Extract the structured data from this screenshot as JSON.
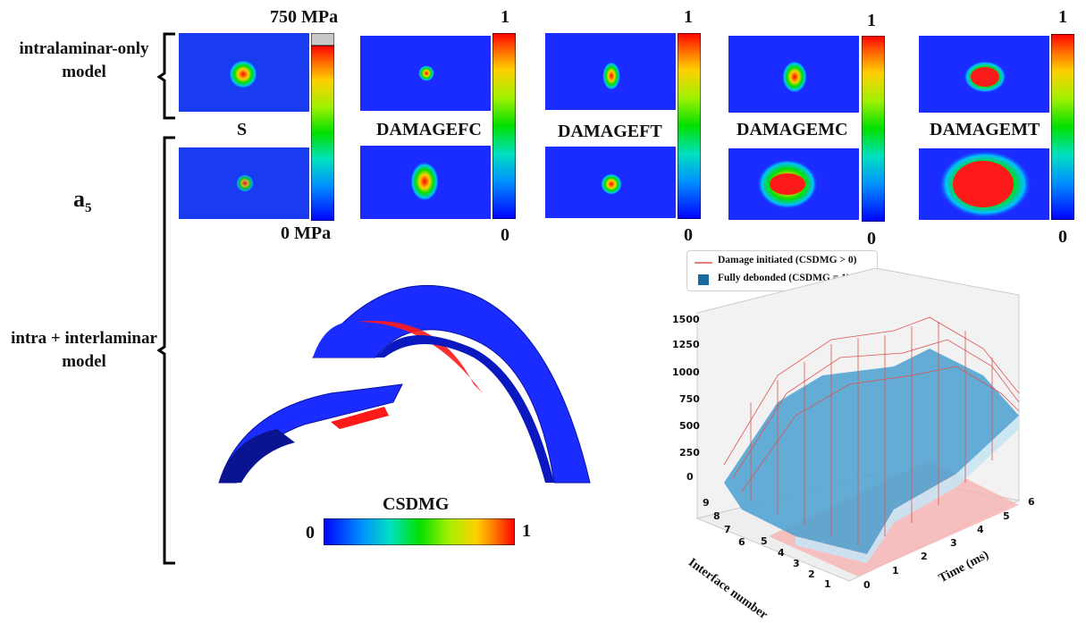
{
  "labels": {
    "intralaminar": "intralaminar-only\nmodel",
    "intralaminar_l1": "intralaminar-only",
    "intralaminar_l2": "model",
    "case_main": "a",
    "case_sub": "5",
    "intra_inter_l1": "intra + interlaminar",
    "intra_inter_l2": "model"
  },
  "panels": [
    {
      "title": "S",
      "max": "750 MPa",
      "min": "0 MPa"
    },
    {
      "title": "DAMAGEFC",
      "max": "1",
      "min": "0"
    },
    {
      "title": "DAMAGEFT",
      "max": "1",
      "min": "0"
    },
    {
      "title": "DAMAGEMC",
      "max": "1",
      "min": "0"
    },
    {
      "title": "DAMAGEMT",
      "max": "1",
      "min": "0"
    }
  ],
  "csdmg": {
    "title": "CSDMG",
    "min": "0",
    "max": "1"
  },
  "plot3d": {
    "legend": {
      "initiated": "Damage initiated (CSDMG > 0)",
      "debonded": "Fully debonded (CSDMG = 1)"
    },
    "xlabel": "Time (ms)",
    "ylabel": "Interface number",
    "x_ticks": [
      "0",
      "1",
      "2",
      "3",
      "4",
      "5",
      "6"
    ],
    "y_ticks": [
      "1",
      "2",
      "3",
      "4",
      "5",
      "6",
      "7",
      "8",
      "9"
    ],
    "z_ticks": [
      "0",
      "250",
      "500",
      "750",
      "1000",
      "1250",
      "1500"
    ],
    "colors": {
      "initiated": "#e05252",
      "debonded": "#2f7fb0"
    }
  },
  "colors": {
    "field_blue": "#1a2cff",
    "damage_red": "#ff1a1a",
    "legend_blue": "#1a6aa0"
  }
}
